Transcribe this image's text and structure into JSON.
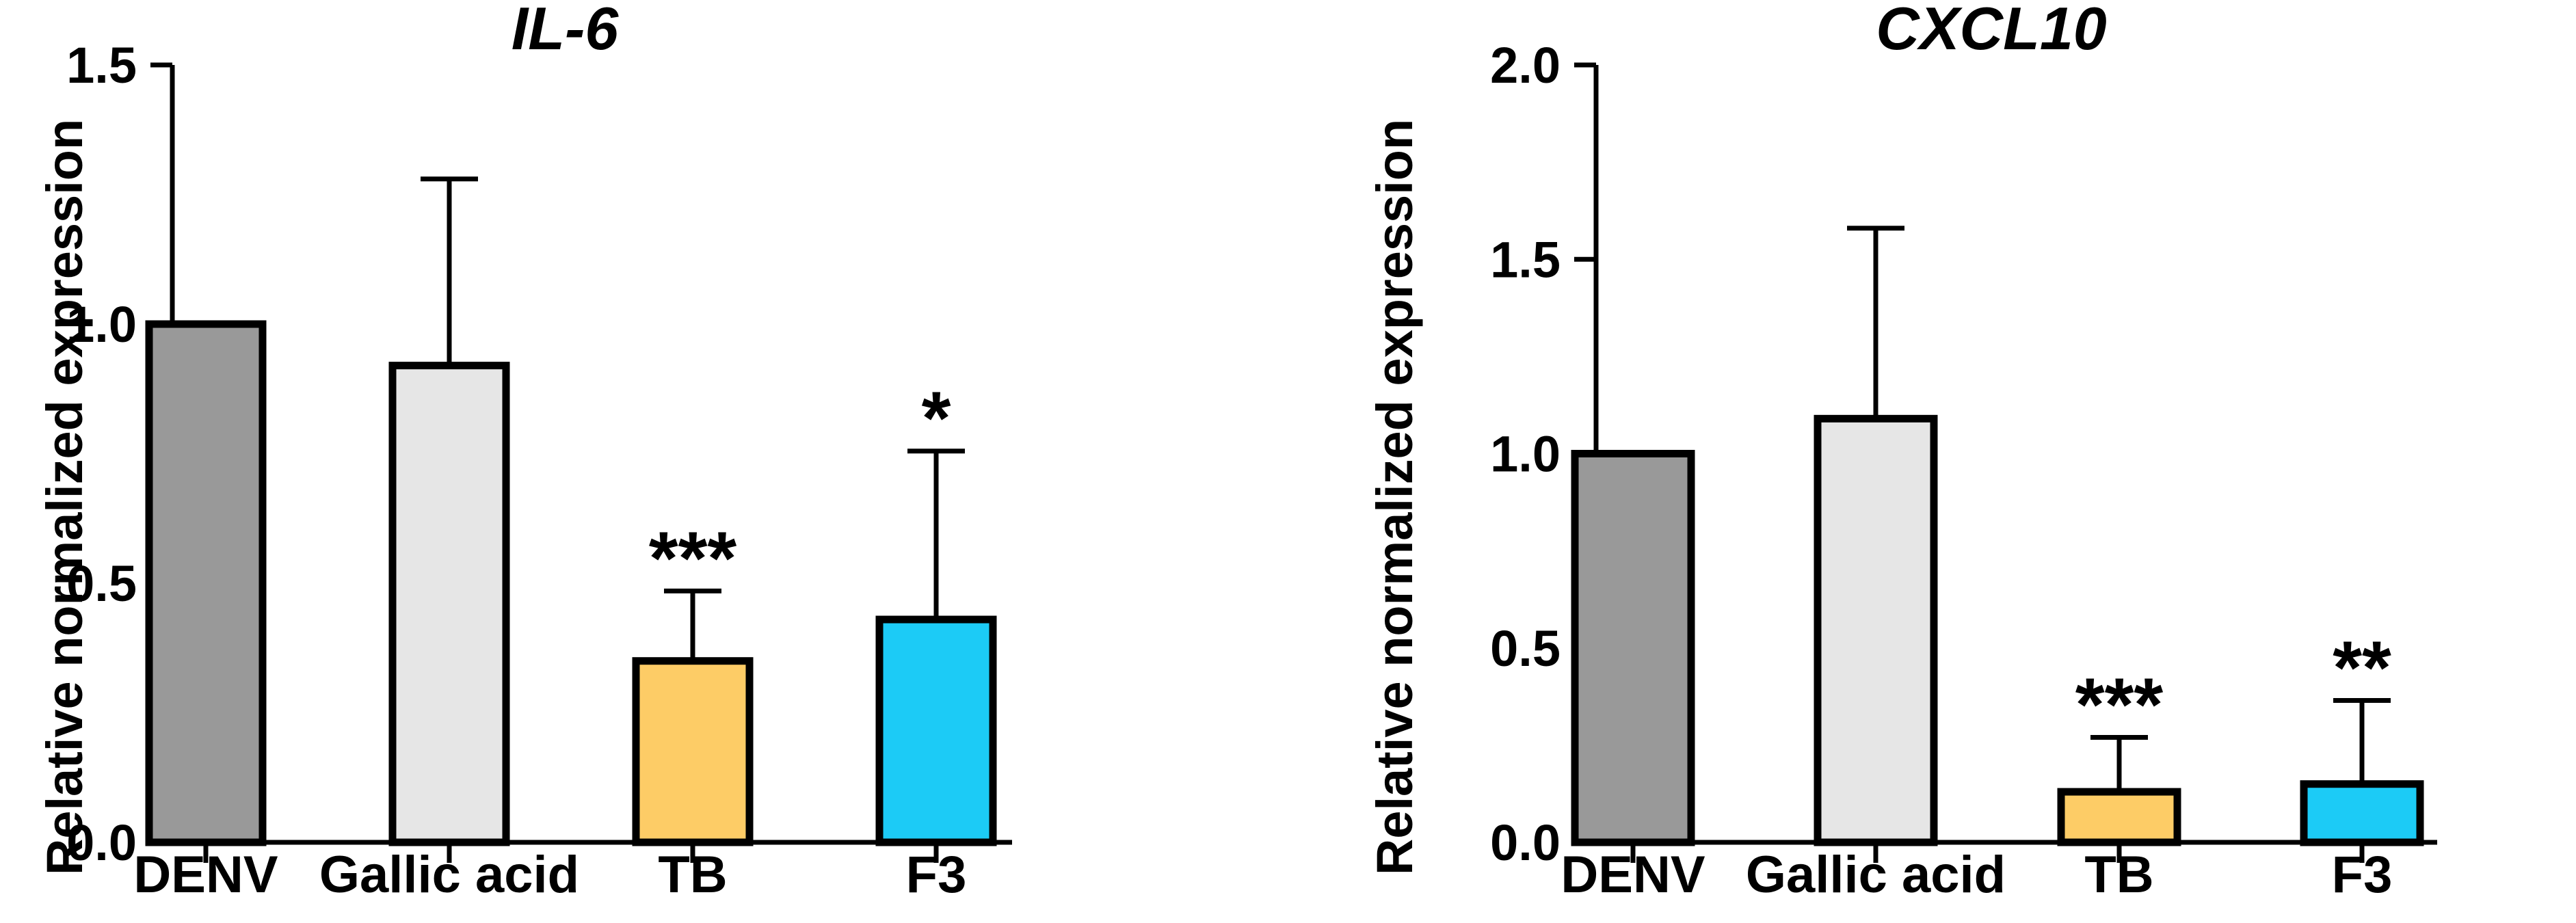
{
  "chart_data": [
    {
      "type": "bar",
      "title": "IL-6",
      "xlabel": "",
      "ylabel": "Relative normalized expression",
      "ylim": [
        0,
        1.5
      ],
      "yticks": [
        "0.0",
        "0.5",
        "1.0",
        "1.5"
      ],
      "categories": [
        "DENV",
        "Gallic acid",
        "TB",
        "F3"
      ],
      "values": [
        1.0,
        0.92,
        0.35,
        0.43
      ],
      "error_upper": [
        1.0,
        1.28,
        0.485,
        0.755
      ],
      "significance": [
        "",
        "",
        "***",
        "*"
      ],
      "colors": [
        "#999999",
        "#e6e6e6",
        "#fdcc66",
        "#1ccbf6"
      ]
    },
    {
      "type": "bar",
      "title": "CXCL10",
      "xlabel": "",
      "ylabel": "Relative normalized expression",
      "ylim": [
        0,
        2.0
      ],
      "yticks": [
        "0.0",
        "0.5",
        "1.0",
        "1.5",
        "2.0"
      ],
      "categories": [
        "DENV",
        "Gallic acid",
        "TB",
        "F3"
      ],
      "values": [
        1.0,
        1.09,
        0.13,
        0.15
      ],
      "error_upper": [
        1.0,
        1.58,
        0.27,
        0.365
      ],
      "significance": [
        "",
        "",
        "***",
        "**"
      ],
      "colors": [
        "#999999",
        "#e6e6e6",
        "#fdcc66",
        "#1ccbf6"
      ]
    }
  ]
}
